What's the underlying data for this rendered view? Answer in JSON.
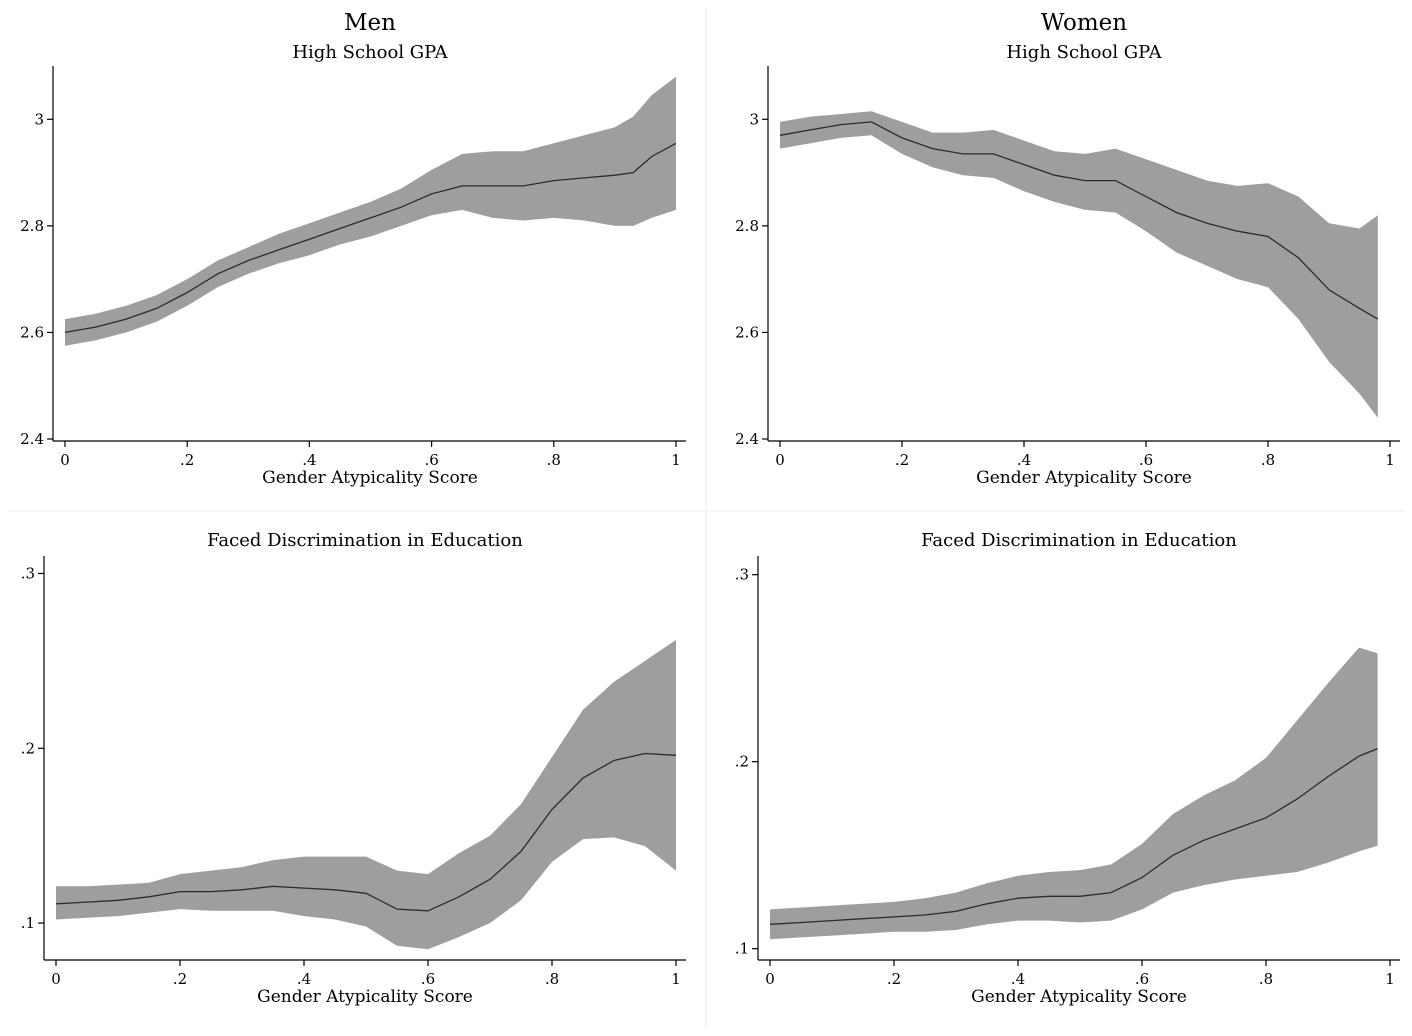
{
  "figure": {
    "columns": [
      "Men",
      "Women"
    ]
  },
  "colors": {
    "band": "#9e9e9e",
    "line": "#2b2b2b",
    "axis": "#000000"
  },
  "chart_data": [
    {
      "id": "men-gpa",
      "type": "line",
      "column_title": "Men",
      "title": "High School GPA",
      "xlabel": "Gender Atypicality Score",
      "ylabel": "",
      "xlim": [
        0,
        1
      ],
      "ylim": [
        2.4,
        3.1
      ],
      "xticks": [
        0,
        0.2,
        0.4,
        0.6,
        0.8,
        1
      ],
      "xtick_labels": [
        "0",
        ".2",
        ".4",
        ".6",
        ".8",
        "1"
      ],
      "yticks": [
        2.4,
        2.6,
        2.8,
        3.0
      ],
      "ytick_labels": [
        "2.4",
        "2.6",
        "2.8",
        "3"
      ],
      "grid": false,
      "x": [
        0,
        0.05,
        0.1,
        0.15,
        0.2,
        0.25,
        0.3,
        0.35,
        0.4,
        0.45,
        0.5,
        0.55,
        0.6,
        0.65,
        0.7,
        0.75,
        0.8,
        0.85,
        0.9,
        0.93,
        0.96,
        1.0
      ],
      "series": [
        {
          "role": "estimate",
          "values": [
            2.6,
            2.61,
            2.625,
            2.645,
            2.675,
            2.71,
            2.735,
            2.755,
            2.775,
            2.795,
            2.815,
            2.835,
            2.86,
            2.875,
            2.875,
            2.875,
            2.885,
            2.89,
            2.895,
            2.9,
            2.93,
            2.955
          ]
        },
        {
          "role": "upper",
          "values": [
            2.625,
            2.635,
            2.65,
            2.67,
            2.7,
            2.735,
            2.76,
            2.785,
            2.805,
            2.825,
            2.845,
            2.87,
            2.905,
            2.935,
            2.94,
            2.94,
            2.955,
            2.97,
            2.985,
            3.005,
            3.045,
            3.08
          ]
        },
        {
          "role": "lower",
          "values": [
            2.575,
            2.585,
            2.6,
            2.62,
            2.65,
            2.685,
            2.71,
            2.73,
            2.745,
            2.765,
            2.78,
            2.8,
            2.82,
            2.83,
            2.815,
            2.81,
            2.815,
            2.81,
            2.8,
            2.8,
            2.815,
            2.83
          ]
        }
      ]
    },
    {
      "id": "women-gpa",
      "type": "line",
      "column_title": "Women",
      "title": "High School GPA",
      "xlabel": "Gender Atypicality Score",
      "ylabel": "",
      "xlim": [
        0,
        1
      ],
      "ylim": [
        2.4,
        3.1
      ],
      "xticks": [
        0,
        0.2,
        0.4,
        0.6,
        0.8,
        1
      ],
      "xtick_labels": [
        "0",
        ".2",
        ".4",
        ".6",
        ".8",
        "1"
      ],
      "yticks": [
        2.4,
        2.6,
        2.8,
        3.0
      ],
      "ytick_labels": [
        "2.4",
        "2.6",
        "2.8",
        "3"
      ],
      "grid": false,
      "x": [
        0,
        0.05,
        0.1,
        0.15,
        0.2,
        0.25,
        0.3,
        0.35,
        0.4,
        0.45,
        0.5,
        0.55,
        0.6,
        0.65,
        0.7,
        0.75,
        0.8,
        0.85,
        0.9,
        0.95,
        0.98
      ],
      "series": [
        {
          "role": "estimate",
          "values": [
            2.97,
            2.98,
            2.99,
            2.995,
            2.965,
            2.945,
            2.935,
            2.935,
            2.915,
            2.895,
            2.885,
            2.885,
            2.855,
            2.825,
            2.805,
            2.79,
            2.78,
            2.74,
            2.68,
            2.645,
            2.625
          ]
        },
        {
          "role": "upper",
          "values": [
            2.995,
            3.005,
            3.01,
            3.015,
            2.995,
            2.975,
            2.975,
            2.98,
            2.96,
            2.94,
            2.935,
            2.945,
            2.925,
            2.905,
            2.885,
            2.875,
            2.88,
            2.855,
            2.805,
            2.795,
            2.82
          ]
        },
        {
          "role": "lower",
          "values": [
            2.945,
            2.955,
            2.965,
            2.97,
            2.935,
            2.91,
            2.895,
            2.89,
            2.865,
            2.845,
            2.83,
            2.825,
            2.79,
            2.75,
            2.725,
            2.7,
            2.685,
            2.625,
            2.545,
            2.485,
            2.44
          ]
        }
      ]
    },
    {
      "id": "men-discrimination",
      "type": "line",
      "column_title": "",
      "title": "Faced Discrimination in Education",
      "xlabel": "Gender Atypicality Score",
      "ylabel": "",
      "xlim": [
        0,
        1
      ],
      "ylim": [
        0.08,
        0.31
      ],
      "xticks": [
        0,
        0.2,
        0.4,
        0.6,
        0.8,
        1
      ],
      "xtick_labels": [
        "0",
        ".2",
        ".4",
        ".6",
        ".8",
        "1"
      ],
      "yticks": [
        0.1,
        0.2,
        0.3
      ],
      "ytick_labels": [
        ".1",
        ".2",
        ".3"
      ],
      "grid": false,
      "x": [
        0,
        0.05,
        0.1,
        0.15,
        0.2,
        0.25,
        0.3,
        0.35,
        0.4,
        0.45,
        0.5,
        0.55,
        0.6,
        0.65,
        0.7,
        0.75,
        0.8,
        0.85,
        0.9,
        0.95,
        1.0
      ],
      "series": [
        {
          "role": "estimate",
          "values": [
            0.111,
            0.112,
            0.113,
            0.115,
            0.118,
            0.118,
            0.119,
            0.121,
            0.12,
            0.119,
            0.117,
            0.108,
            0.107,
            0.115,
            0.125,
            0.141,
            0.165,
            0.183,
            0.193,
            0.197,
            0.196
          ]
        },
        {
          "role": "upper",
          "values": [
            0.121,
            0.121,
            0.122,
            0.123,
            0.128,
            0.13,
            0.132,
            0.136,
            0.138,
            0.138,
            0.138,
            0.13,
            0.128,
            0.14,
            0.15,
            0.168,
            0.195,
            0.222,
            0.238,
            0.25,
            0.262
          ]
        },
        {
          "role": "lower",
          "values": [
            0.102,
            0.103,
            0.104,
            0.106,
            0.108,
            0.107,
            0.107,
            0.107,
            0.104,
            0.102,
            0.098,
            0.087,
            0.085,
            0.092,
            0.1,
            0.113,
            0.135,
            0.148,
            0.149,
            0.144,
            0.13
          ]
        }
      ]
    },
    {
      "id": "women-discrimination",
      "type": "line",
      "column_title": "",
      "title": "Faced Discrimination in Education",
      "xlabel": "Gender Atypicality Score",
      "ylabel": "",
      "xlim": [
        0,
        1
      ],
      "ylim": [
        0.095,
        0.31
      ],
      "xticks": [
        0,
        0.2,
        0.4,
        0.6,
        0.8,
        1
      ],
      "xtick_labels": [
        "0",
        ".2",
        ".4",
        ".6",
        ".8",
        "1"
      ],
      "yticks": [
        0.1,
        0.2,
        0.3
      ],
      "ytick_labels": [
        ".1",
        ".2",
        ".3"
      ],
      "grid": false,
      "x": [
        0,
        0.05,
        0.1,
        0.15,
        0.2,
        0.25,
        0.3,
        0.35,
        0.4,
        0.45,
        0.5,
        0.55,
        0.6,
        0.65,
        0.7,
        0.75,
        0.8,
        0.85,
        0.9,
        0.95,
        0.98
      ],
      "series": [
        {
          "role": "estimate",
          "values": [
            0.113,
            0.114,
            0.115,
            0.116,
            0.117,
            0.118,
            0.12,
            0.124,
            0.127,
            0.128,
            0.128,
            0.13,
            0.138,
            0.15,
            0.158,
            0.164,
            0.17,
            0.18,
            0.192,
            0.203,
            0.207
          ]
        },
        {
          "role": "upper",
          "values": [
            0.121,
            0.122,
            0.123,
            0.124,
            0.125,
            0.127,
            0.13,
            0.135,
            0.139,
            0.141,
            0.142,
            0.145,
            0.156,
            0.172,
            0.182,
            0.19,
            0.202,
            0.222,
            0.242,
            0.261,
            0.258
          ]
        },
        {
          "role": "lower",
          "values": [
            0.105,
            0.106,
            0.107,
            0.108,
            0.109,
            0.109,
            0.11,
            0.113,
            0.115,
            0.115,
            0.114,
            0.115,
            0.121,
            0.13,
            0.134,
            0.137,
            0.139,
            0.141,
            0.146,
            0.152,
            0.155
          ]
        }
      ]
    }
  ]
}
